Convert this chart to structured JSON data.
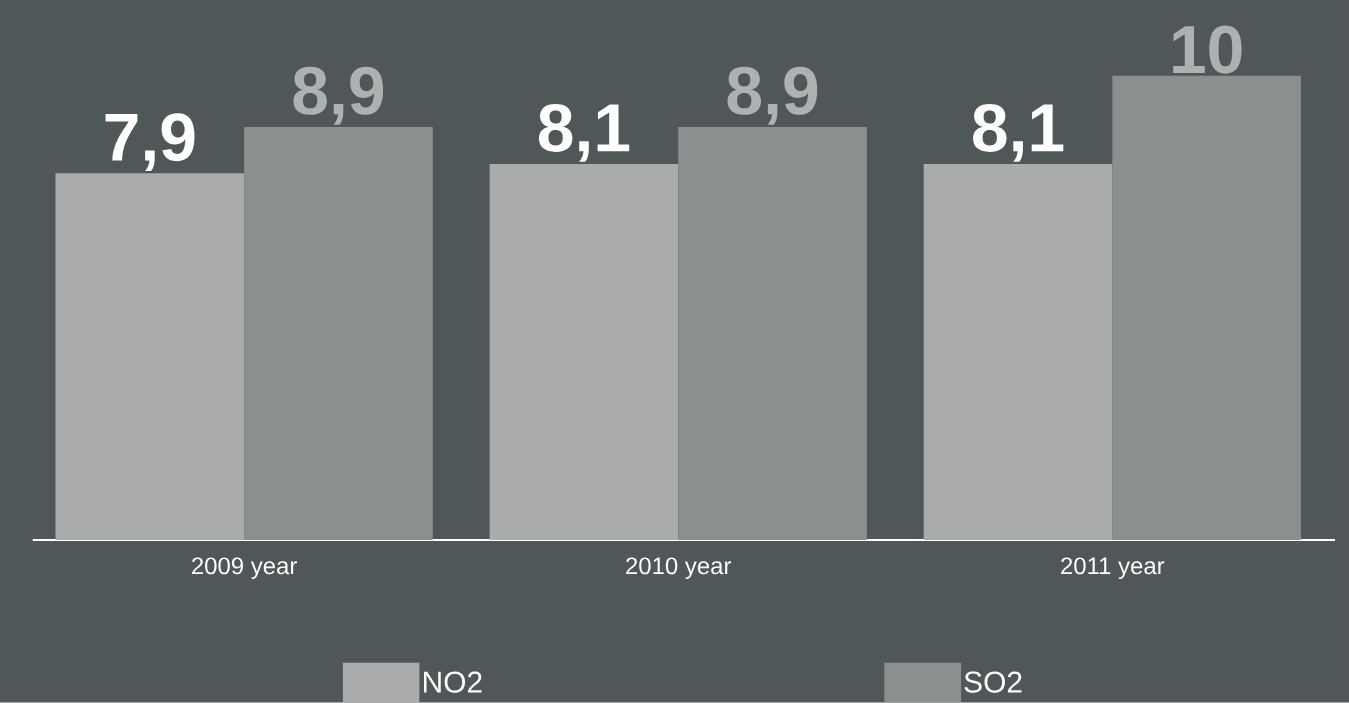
{
  "chart_data": {
    "type": "bar",
    "categories": [
      "2009 year",
      "2010 year",
      "2011 year"
    ],
    "series": [
      {
        "name": "NO2",
        "color": "#a9abac",
        "values": [
          7.9,
          8.1,
          8.1
        ],
        "value_labels": [
          "7,9",
          "8,1",
          "8,1"
        ]
      },
      {
        "name": "SO2",
        "color": "#8b8f90",
        "values": [
          8.9,
          8.9,
          10
        ],
        "value_labels": [
          "8,9",
          "8,9",
          "10"
        ]
      }
    ],
    "legend": "bottom"
  }
}
